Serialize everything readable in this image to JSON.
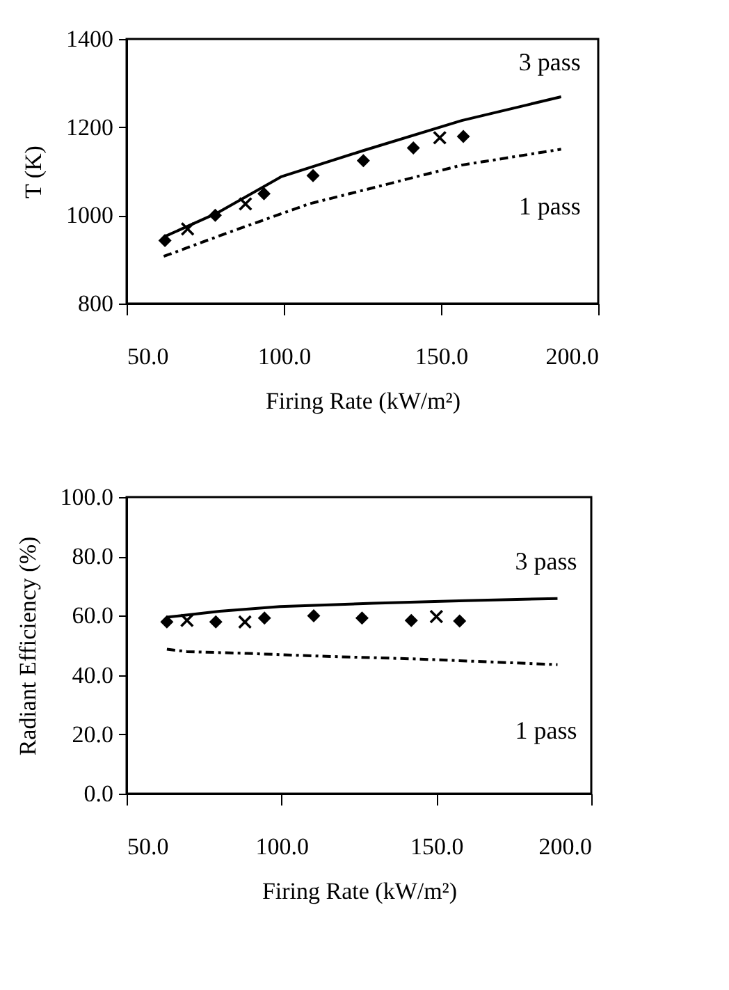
{
  "chart_data": [
    {
      "type": "line",
      "xlabel": "Firing Rate (kW/m²)",
      "ylabel": "T (K)",
      "xlim": [
        50,
        200
      ],
      "xticks": [
        {
          "value": 50,
          "label": "50.0"
        },
        {
          "value": 100,
          "label": "100.0"
        },
        {
          "value": 150,
          "label": "150.0"
        },
        {
          "value": 200,
          "label": "200.0"
        }
      ],
      "ylim": [
        800,
        1400
      ],
      "yticks": [
        800,
        1000,
        1200,
        1400
      ],
      "grid": false,
      "series": [
        {
          "name": "3 pass",
          "color": "#000000",
          "line_style": "solid",
          "x": [
            61.8,
            78.7,
            99.3,
            125.3,
            156.6,
            188.2
          ],
          "values": [
            951,
            1005,
            1088,
            1147,
            1215,
            1269
          ]
        },
        {
          "name": "1 pass",
          "color": "#000000",
          "line_style": "dashed",
          "x": [
            61.8,
            81.6,
            108,
            130.9,
            156.6,
            188.2
          ],
          "values": [
            907,
            959,
            1026,
            1067,
            1114,
            1150
          ]
        },
        {
          "type": "scatter",
          "color": "#000000",
          "marker": "diamond",
          "x": [
            62.2,
            78.2,
            93.7,
            109.3,
            125.3,
            141.2,
            157.1
          ],
          "values": [
            943,
            1000,
            1049,
            1090,
            1124,
            1153,
            1179
          ]
        },
        {
          "type": "scatter",
          "color": "#000000",
          "marker": "cross",
          "x": [
            69.4,
            87.8,
            149.6
          ],
          "values": [
            969,
            1026,
            1176
          ]
        }
      ]
    },
    {
      "type": "line",
      "xlabel": "Firing Rate (kW/m²)",
      "ylabel": "Radiant Efficiency (%)",
      "xlim": [
        50,
        200
      ],
      "xticks": [
        {
          "value": 50,
          "label": "50.0"
        },
        {
          "value": 100,
          "label": "100.0"
        },
        {
          "value": 150,
          "label": "150.0"
        },
        {
          "value": 200,
          "label": "200.0"
        }
      ],
      "ylim": [
        0,
        100
      ],
      "yticks": [
        {
          "value": 0,
          "label": "0.0"
        },
        {
          "value": 20,
          "label": "20.0"
        },
        {
          "value": 40,
          "label": "40.0"
        },
        {
          "value": 60,
          "label": "60.0"
        },
        {
          "value": 80,
          "label": "80.0"
        },
        {
          "value": 100,
          "label": "100.0"
        }
      ],
      "grid": false,
      "series": [
        {
          "name": "3 pass",
          "color": "#000000",
          "line_style": "solid",
          "x": [
            63,
            80,
            99.5,
            129.5,
            159.4,
            189.1
          ],
          "values": [
            59.5,
            61.5,
            63.1,
            64.2,
            65.1,
            65.8
          ]
        },
        {
          "name": "1 pass",
          "color": "#000000",
          "line_style": "dashed",
          "x": [
            63,
            69.5,
            88.9,
            114.5,
            144.4,
            189.1
          ],
          "values": [
            48.7,
            47.9,
            47.3,
            46.3,
            45.4,
            43.5
          ]
        },
        {
          "type": "scatter",
          "color": "#000000",
          "marker": "diamond",
          "x": [
            63,
            78.8,
            94.5,
            110.4,
            126,
            141.9,
            157.5
          ],
          "values": [
            57.9,
            57.9,
            59.2,
            60,
            59.2,
            58.4,
            58.2
          ]
        },
        {
          "type": "scatter",
          "color": "#000000",
          "marker": "cross",
          "x": [
            69.5,
            88.2,
            150
          ],
          "values": [
            58.4,
            57.9,
            59.7
          ]
        }
      ]
    }
  ]
}
